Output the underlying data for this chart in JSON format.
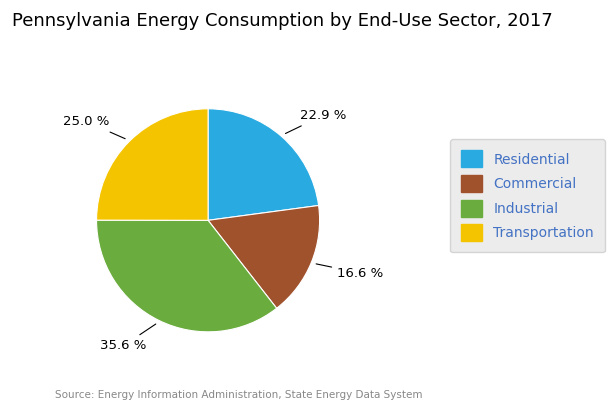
{
  "title": "Pennsylvania Energy Consumption by End-Use Sector, 2017",
  "labels": [
    "Residential",
    "Commercial",
    "Industrial",
    "Transportation"
  ],
  "values": [
    22.9,
    16.6,
    35.6,
    25.0
  ],
  "colors": [
    "#29ABE2",
    "#A0522D",
    "#6AAC3D",
    "#F5C400"
  ],
  "pct_labels": [
    "22.9 %",
    "16.6 %",
    "35.6 %",
    "25.0 %"
  ],
  "legend_labels": [
    "Residential",
    "Commercial",
    "Industrial",
    "Transportation"
  ],
  "source_text": "Source: Energy Information Administration, State Energy Data System",
  "background_color": "#FFFFFF",
  "title_fontsize": 13,
  "legend_fontsize": 10,
  "label_fontsize": 9.5
}
